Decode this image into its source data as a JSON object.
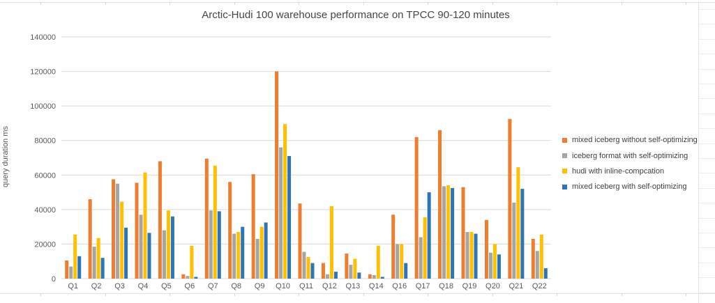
{
  "chart_data": {
    "type": "bar",
    "title": "Arctic-Hudi 100 warehouse performance on TPCC 90-120 minutes",
    "xlabel": "",
    "ylabel": "query duration ms",
    "ylim": [
      0,
      140000
    ],
    "y_ticks": [
      0,
      20000,
      40000,
      60000,
      80000,
      100000,
      120000,
      140000
    ],
    "grid": true,
    "legend_position": "right",
    "categories": [
      "Q1",
      "Q2",
      "Q3",
      "Q4",
      "Q5",
      "Q6",
      "Q7",
      "Q8",
      "Q9",
      "Q10",
      "Q11",
      "Q12",
      "Q13",
      "Q14",
      "Q16",
      "Q17",
      "Q18",
      "Q19",
      "Q20",
      "Q21",
      "Q22"
    ],
    "series": [
      {
        "name": "mixed iceberg without self-optimizing",
        "color": "#ED7D31",
        "values": [
          10500,
          46000,
          57500,
          55500,
          68000,
          2500,
          69500,
          56000,
          60500,
          120000,
          43500,
          9000,
          14500,
          2500,
          37000,
          82000,
          86000,
          53000,
          34000,
          92500,
          23000
        ]
      },
      {
        "name": "iceberg format with self-optimizing",
        "color": "#A5A5A5",
        "values": [
          7000,
          18500,
          55000,
          37000,
          28000,
          1500,
          39500,
          26000,
          23000,
          76000,
          15500,
          2500,
          8000,
          2000,
          20000,
          24000,
          53500,
          27000,
          15000,
          44000,
          16000
        ]
      },
      {
        "name": "hudi with inline-compcation",
        "color": "#FFC000",
        "values": [
          25500,
          23500,
          44500,
          61500,
          39500,
          19000,
          65500,
          27000,
          30000,
          89500,
          12500,
          42000,
          11500,
          19000,
          20000,
          35500,
          54000,
          27000,
          20000,
          64500,
          25500
        ]
      },
      {
        "name": "mixed iceberg with self-optimizing",
        "color": "#2E75B6",
        "values": [
          13000,
          12000,
          29500,
          26500,
          36000,
          1000,
          39000,
          30000,
          32500,
          71000,
          9000,
          4000,
          3500,
          1000,
          9000,
          50000,
          52500,
          26000,
          14000,
          52000,
          6000
        ]
      }
    ],
    "colors": {
      "gridline": "#d9d9d9",
      "axis_text": "#595959",
      "title_text": "#454545",
      "legend_text": "#404040",
      "spreadsheet_border": "#e2e2e2"
    }
  }
}
